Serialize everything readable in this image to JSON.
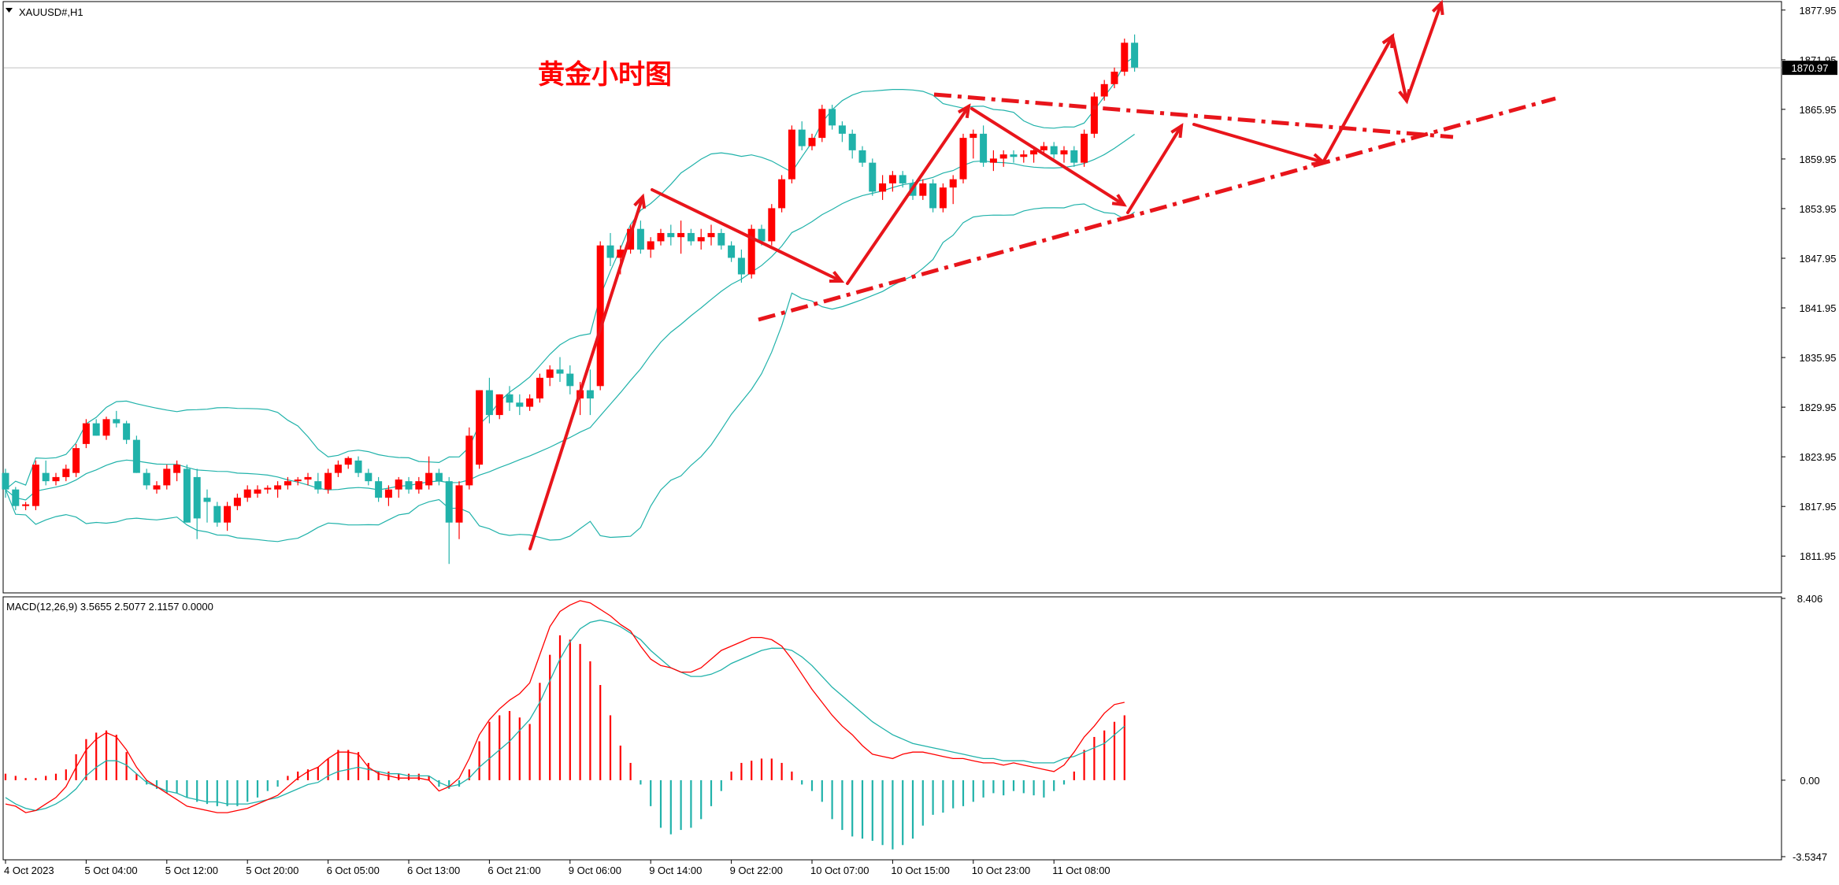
{
  "window": {
    "symbol_label": "XAUUSD#,H1"
  },
  "annotation": {
    "title": "黄金小时图"
  },
  "colors": {
    "bull": "#ff0000",
    "bear": "#20b2aa",
    "band": "#20b2aa",
    "macd_main": "#ff0000",
    "macd_signal": "#20b2aa",
    "arrow": "#e8151b",
    "axis_text": "#000000",
    "price_tag_bg": "#000000",
    "price_tag_text": "#ffffff"
  },
  "chart_data": [
    {
      "type": "candlestick",
      "label": "XAUUSD#,H1",
      "ylim": [
        1807.5,
        1878.5
      ],
      "y_ticks": [
        "1877.95",
        "1871.95",
        "1865.95",
        "1859.95",
        "1853.95",
        "1847.95",
        "1841.95",
        "1835.95",
        "1829.95",
        "1823.95",
        "1817.95",
        "1811.95"
      ],
      "current_price": "1870.97",
      "x_tick_labels": [
        "4 Oct 2023",
        "5 Oct 04:00",
        "5 Oct 12:00",
        "5 Oct 20:00",
        "6 Oct 05:00",
        "6 Oct 13:00",
        "6 Oct 21:00",
        "9 Oct 06:00",
        "9 Oct 14:00",
        "9 Oct 22:00",
        "10 Oct 07:00",
        "10 Oct 15:00",
        "10 Oct 23:00",
        "11 Oct 08:00"
      ],
      "x_tick_index": [
        0,
        8,
        16,
        24,
        32,
        40,
        48,
        56,
        64,
        72,
        80,
        88,
        96,
        104
      ],
      "ohlc": [
        [
          1822.0,
          1822.5,
          1819.0,
          1820.0
        ],
        [
          1820.0,
          1820.3,
          1817.5,
          1818.0
        ],
        [
          1818.0,
          1818.5,
          1817.5,
          1818.2
        ],
        [
          1818.0,
          1823.5,
          1817.5,
          1823.0
        ],
        [
          1822.0,
          1823.5,
          1820.5,
          1821.0
        ],
        [
          1821.0,
          1822.0,
          1820.5,
          1821.5
        ],
        [
          1821.5,
          1823.0,
          1821.0,
          1822.5
        ],
        [
          1822.0,
          1825.5,
          1821.5,
          1825.0
        ],
        [
          1825.5,
          1828.5,
          1825.0,
          1828.0
        ],
        [
          1828.0,
          1828.5,
          1826.5,
          1826.5
        ],
        [
          1826.5,
          1828.8,
          1826.0,
          1828.5
        ],
        [
          1828.5,
          1829.5,
          1827.5,
          1828.0
        ],
        [
          1828.0,
          1828.3,
          1825.5,
          1826.0
        ],
        [
          1826.0,
          1826.5,
          1822.0,
          1822.0
        ],
        [
          1822.0,
          1822.5,
          1820.0,
          1820.5
        ],
        [
          1820.0,
          1821.0,
          1819.5,
          1820.5
        ],
        [
          1820.5,
          1823.0,
          1820.0,
          1822.5
        ],
        [
          1822.0,
          1823.5,
          1821.0,
          1823.0
        ],
        [
          1822.5,
          1823.0,
          1816.0,
          1816.0
        ],
        [
          1821.5,
          1822.5,
          1814.0,
          1816.5
        ],
        [
          1819.0,
          1820.0,
          1816.0,
          1818.5
        ],
        [
          1818.0,
          1818.5,
          1815.5,
          1816.0
        ],
        [
          1816.0,
          1818.5,
          1815.0,
          1818.0
        ],
        [
          1818.0,
          1819.5,
          1817.5,
          1819.0
        ],
        [
          1819.0,
          1820.5,
          1818.5,
          1820.0
        ],
        [
          1819.5,
          1820.5,
          1819.0,
          1820.0
        ],
        [
          1820.0,
          1820.5,
          1819.5,
          1820.2
        ],
        [
          1820.0,
          1821.0,
          1819.0,
          1820.5
        ],
        [
          1820.5,
          1821.5,
          1820.0,
          1821.0
        ],
        [
          1821.0,
          1821.5,
          1820.5,
          1821.2
        ],
        [
          1821.2,
          1822.0,
          1820.5,
          1821.5
        ],
        [
          1821.0,
          1822.0,
          1819.5,
          1820.0
        ],
        [
          1820.0,
          1822.5,
          1819.5,
          1822.0
        ],
        [
          1822.0,
          1823.5,
          1821.5,
          1823.0
        ],
        [
          1823.0,
          1824.0,
          1822.5,
          1823.8
        ],
        [
          1823.5,
          1824.0,
          1821.5,
          1822.0
        ],
        [
          1822.0,
          1822.5,
          1820.5,
          1821.0
        ],
        [
          1821.0,
          1821.5,
          1818.5,
          1819.0
        ],
        [
          1819.0,
          1820.5,
          1818.0,
          1820.0
        ],
        [
          1820.0,
          1821.5,
          1819.0,
          1821.2
        ],
        [
          1821.0,
          1821.5,
          1819.5,
          1820.0
        ],
        [
          1820.0,
          1821.5,
          1819.5,
          1821.0
        ],
        [
          1820.5,
          1824.0,
          1820.0,
          1822.0
        ],
        [
          1822.0,
          1822.5,
          1820.5,
          1821.0
        ],
        [
          1821.0,
          1821.5,
          1811.0,
          1816.0
        ],
        [
          1816.0,
          1821.0,
          1814.0,
          1820.5
        ],
        [
          1820.5,
          1827.5,
          1820.0,
          1826.5
        ],
        [
          1823.0,
          1832.0,
          1822.5,
          1832.0
        ],
        [
          1832.0,
          1833.5,
          1828.0,
          1829.0
        ],
        [
          1829.0,
          1831.5,
          1828.5,
          1831.5
        ],
        [
          1831.5,
          1832.5,
          1829.5,
          1830.5
        ],
        [
          1830.5,
          1831.5,
          1829.0,
          1830.0
        ],
        [
          1830.0,
          1831.5,
          1829.5,
          1831.0
        ],
        [
          1831.0,
          1834.0,
          1830.5,
          1833.5
        ],
        [
          1833.5,
          1835.0,
          1832.5,
          1834.5
        ],
        [
          1834.5,
          1836.0,
          1833.0,
          1834.0
        ],
        [
          1834.0,
          1835.0,
          1831.5,
          1832.5
        ],
        [
          1831.0,
          1833.0,
          1829.0,
          1832.0
        ],
        [
          1832.0,
          1834.5,
          1829.0,
          1831.0
        ],
        [
          1832.5,
          1850.0,
          1832.0,
          1849.5
        ],
        [
          1849.5,
          1851.0,
          1847.0,
          1848.0
        ],
        [
          1848.0,
          1849.5,
          1846.0,
          1849.0
        ],
        [
          1849.0,
          1852.0,
          1848.5,
          1851.5
        ],
        [
          1851.5,
          1852.5,
          1848.5,
          1849.0
        ],
        [
          1849.0,
          1850.5,
          1848.0,
          1850.0
        ],
        [
          1850.0,
          1851.5,
          1849.5,
          1851.0
        ],
        [
          1851.0,
          1852.0,
          1849.5,
          1850.5
        ],
        [
          1850.5,
          1852.5,
          1848.5,
          1851.0
        ],
        [
          1851.0,
          1851.5,
          1849.5,
          1850.0
        ],
        [
          1850.0,
          1851.5,
          1849.0,
          1850.5
        ],
        [
          1850.5,
          1852.0,
          1849.5,
          1851.0
        ],
        [
          1851.0,
          1851.5,
          1849.0,
          1849.5
        ],
        [
          1849.5,
          1850.0,
          1847.5,
          1848.0
        ],
        [
          1848.0,
          1849.0,
          1845.0,
          1846.0
        ],
        [
          1846.0,
          1852.0,
          1845.5,
          1851.5
        ],
        [
          1851.5,
          1852.0,
          1849.5,
          1850.0
        ],
        [
          1850.0,
          1854.5,
          1849.5,
          1854.0
        ],
        [
          1854.0,
          1858.0,
          1853.5,
          1857.5
        ],
        [
          1857.5,
          1864.0,
          1857.0,
          1863.5
        ],
        [
          1863.5,
          1864.5,
          1861.0,
          1861.5
        ],
        [
          1861.5,
          1863.0,
          1861.0,
          1862.5
        ],
        [
          1862.5,
          1866.5,
          1862.0,
          1866.0
        ],
        [
          1866.0,
          1866.5,
          1863.5,
          1864.0
        ],
        [
          1864.0,
          1864.5,
          1862.0,
          1863.0
        ],
        [
          1863.0,
          1863.5,
          1860.0,
          1861.0
        ],
        [
          1861.0,
          1861.5,
          1859.0,
          1859.5
        ],
        [
          1859.5,
          1860.0,
          1855.5,
          1856.0
        ],
        [
          1856.0,
          1858.0,
          1855.0,
          1857.0
        ],
        [
          1857.0,
          1858.5,
          1856.0,
          1858.0
        ],
        [
          1858.0,
          1858.5,
          1856.5,
          1857.0
        ],
        [
          1857.0,
          1857.5,
          1855.0,
          1855.5
        ],
        [
          1855.5,
          1857.5,
          1855.0,
          1857.0
        ],
        [
          1857.0,
          1857.5,
          1853.5,
          1854.0
        ],
        [
          1854.0,
          1857.0,
          1853.5,
          1856.5
        ],
        [
          1856.5,
          1858.0,
          1854.5,
          1857.5
        ],
        [
          1857.5,
          1863.0,
          1857.0,
          1862.5
        ],
        [
          1862.5,
          1863.5,
          1860.0,
          1863.0
        ],
        [
          1863.0,
          1864.0,
          1859.0,
          1859.5
        ],
        [
          1859.5,
          1861.0,
          1858.5,
          1860.0
        ],
        [
          1860.0,
          1861.0,
          1859.0,
          1860.5
        ],
        [
          1860.5,
          1861.0,
          1859.5,
          1860.2
        ],
        [
          1860.2,
          1861.0,
          1859.5,
          1860.5
        ],
        [
          1860.5,
          1861.5,
          1859.5,
          1861.0
        ],
        [
          1861.0,
          1862.0,
          1860.5,
          1861.5
        ],
        [
          1861.5,
          1862.0,
          1860.0,
          1860.5
        ],
        [
          1860.5,
          1861.5,
          1859.5,
          1861.0
        ],
        [
          1861.0,
          1861.5,
          1859.0,
          1859.5
        ],
        [
          1859.5,
          1863.5,
          1859.0,
          1863.0
        ],
        [
          1863.0,
          1868.0,
          1862.5,
          1867.5
        ],
        [
          1867.5,
          1869.5,
          1867.0,
          1869.0
        ],
        [
          1869.0,
          1871.0,
          1868.5,
          1870.5
        ],
        [
          1870.5,
          1874.5,
          1870.0,
          1874.0
        ],
        [
          1874.0,
          1875.0,
          1870.5,
          1871.0
        ]
      ],
      "bollinger": {
        "period": 20,
        "deviation": 2
      }
    },
    {
      "type": "macd",
      "label": "MACD(12,26,9) 3.5655 2.5077 2.1157 0.0000",
      "ylim": [
        -3.5347,
        8.406
      ],
      "y_ticks": [
        "8.406",
        "0.00",
        "-3.5347"
      ],
      "histogram": [
        0.3,
        0.2,
        0.1,
        0.1,
        0.2,
        0.3,
        0.5,
        1.2,
        1.9,
        2.2,
        2.3,
        2.1,
        1.3,
        0.3,
        -0.2,
        -0.4,
        -0.6,
        -0.6,
        -0.8,
        -1.0,
        -1.1,
        -1.2,
        -1.2,
        -1.2,
        -1.0,
        -0.8,
        -0.5,
        -0.3,
        0.2,
        0.4,
        0.5,
        0.6,
        1.0,
        1.4,
        1.4,
        1.3,
        0.8,
        0.4,
        0.4,
        0.3,
        0.3,
        0.3,
        0.2,
        -0.3,
        -0.4,
        -0.3,
        0.5,
        1.8,
        2.7,
        3.0,
        3.2,
        2.9,
        2.6,
        4.5,
        5.8,
        6.7,
        6.5,
        6.3,
        5.5,
        4.4,
        3.0,
        1.6,
        0.8,
        -0.2,
        -1.2,
        -2.2,
        -2.5,
        -2.3,
        -2.2,
        -1.8,
        -1.2,
        -0.5,
        0.4,
        0.8,
        0.9,
        1.0,
        1.0,
        0.8,
        0.4,
        -0.2,
        -0.5,
        -1.0,
        -1.8,
        -2.3,
        -2.6,
        -2.7,
        -2.8,
        -3.0,
        -3.2,
        -3.0,
        -2.7,
        -2.1,
        -1.6,
        -1.5,
        -1.3,
        -1.2,
        -1.0,
        -0.8,
        -0.6,
        -0.7,
        -0.5,
        -0.6,
        -0.7,
        -0.8,
        -0.5,
        -0.2,
        0.4,
        1.4,
        2.0,
        2.3,
        2.7,
        3.0
      ],
      "signal": [
        -0.8,
        -1.1,
        -1.3,
        -1.4,
        -1.3,
        -1.1,
        -0.8,
        -0.4,
        0.2,
        0.6,
        0.9,
        0.9,
        0.7,
        0.3,
        -0.1,
        -0.3,
        -0.5,
        -0.6,
        -0.8,
        -0.9,
        -1.0,
        -1.0,
        -1.1,
        -1.1,
        -1.1,
        -1.0,
        -0.9,
        -0.8,
        -0.6,
        -0.4,
        -0.2,
        -0.1,
        0.2,
        0.4,
        0.5,
        0.6,
        0.5,
        0.4,
        0.3,
        0.3,
        0.2,
        0.2,
        0.2,
        -0.1,
        -0.3,
        -0.2,
        0.1,
        0.6,
        1.0,
        1.4,
        1.8,
        2.3,
        2.8,
        3.6,
        4.6,
        5.6,
        6.4,
        7.0,
        7.3,
        7.4,
        7.3,
        7.1,
        6.8,
        6.5,
        6.0,
        5.6,
        5.2,
        5.0,
        4.8,
        4.8,
        4.9,
        5.1,
        5.4,
        5.6,
        5.8,
        6.0,
        6.1,
        6.1,
        6.0,
        5.7,
        5.3,
        4.8,
        4.3,
        3.9,
        3.5,
        3.1,
        2.7,
        2.4,
        2.1,
        1.9,
        1.7,
        1.6,
        1.5,
        1.4,
        1.3,
        1.2,
        1.1,
        1.0,
        1.0,
        0.9,
        0.9,
        0.9,
        0.8,
        0.8,
        0.8,
        1.0,
        1.1,
        1.3,
        1.5,
        1.7,
        2.1,
        2.5
      ],
      "macd_line": [
        -1.1,
        -1.2,
        -1.5,
        -1.4,
        -1.1,
        -0.8,
        -0.3,
        0.6,
        1.4,
        1.9,
        2.2,
        2.0,
        1.4,
        0.6,
        0.0,
        -0.3,
        -0.6,
        -0.9,
        -1.2,
        -1.3,
        -1.4,
        -1.5,
        -1.5,
        -1.4,
        -1.3,
        -1.1,
        -0.9,
        -0.7,
        -0.3,
        0.1,
        0.4,
        0.6,
        1.0,
        1.3,
        1.3,
        1.2,
        0.6,
        0.3,
        0.2,
        0.1,
        0.1,
        0.1,
        0.0,
        -0.5,
        -0.3,
        0.1,
        1.0,
        2.1,
        2.8,
        3.3,
        3.7,
        4.0,
        4.5,
        5.8,
        7.1,
        7.8,
        8.1,
        8.3,
        8.2,
        7.9,
        7.6,
        7.2,
        6.9,
        6.2,
        5.6,
        5.3,
        5.2,
        5.0,
        5.0,
        5.2,
        5.6,
        6.0,
        6.2,
        6.4,
        6.6,
        6.6,
        6.5,
        6.2,
        5.6,
        4.9,
        4.2,
        3.6,
        3.0,
        2.5,
        2.1,
        1.6,
        1.2,
        1.1,
        1.0,
        1.2,
        1.3,
        1.3,
        1.2,
        1.1,
        1.0,
        1.0,
        0.9,
        0.8,
        0.8,
        0.7,
        0.8,
        0.7,
        0.6,
        0.5,
        0.4,
        0.7,
        1.3,
        2.0,
        2.5,
        3.1,
        3.5,
        3.6
      ]
    }
  ]
}
